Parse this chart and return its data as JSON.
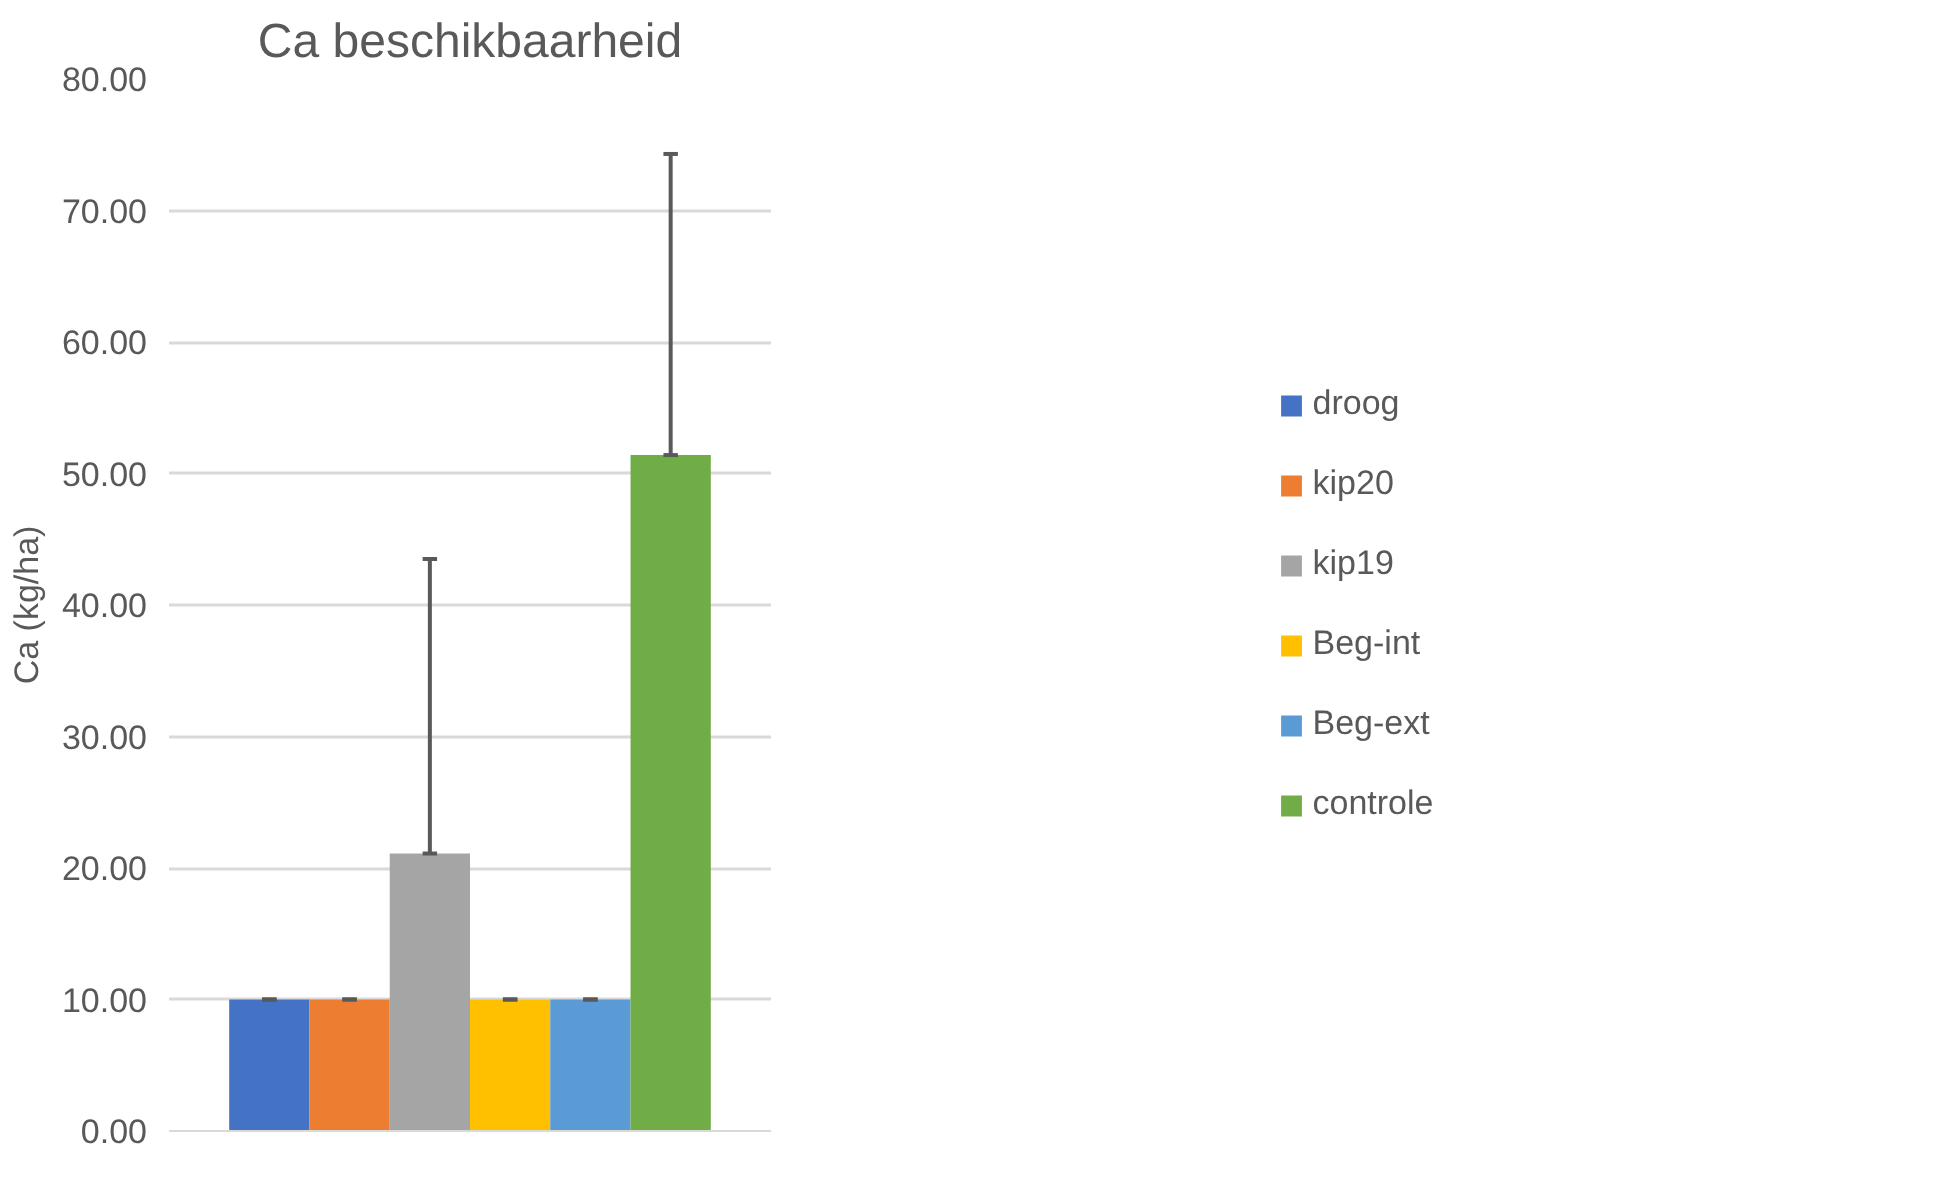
{
  "chart_data": {
    "type": "bar",
    "title": "Ca beschikbaarheid",
    "ylabel": "Ca (kg/ha)",
    "categories": [
      null
    ],
    "series": [
      {
        "name": "droog",
        "color": "#4472c4",
        "values": [
          10.0
        ],
        "errors": [
          [
            10.0,
            10.0
          ]
        ]
      },
      {
        "name": "kip20",
        "color": "#ed7d31",
        "values": [
          10.0
        ],
        "errors": [
          [
            10.0,
            10.0
          ]
        ]
      },
      {
        "name": "kip19",
        "color": "#a5a5a5",
        "values": [
          21.1
        ],
        "errors": [
          [
            21.1,
            43.5
          ]
        ]
      },
      {
        "name": "Beg-int",
        "color": "#ffc000",
        "values": [
          10.0
        ],
        "errors": [
          [
            10.0,
            10.0
          ]
        ]
      },
      {
        "name": "Beg-ext",
        "color": "#5b9bd5",
        "values": [
          10.0
        ],
        "errors": [
          [
            10.0,
            10.0
          ]
        ]
      },
      {
        "name": "controle",
        "color": "#70ad47",
        "values": [
          51.4
        ],
        "errors": [
          [
            51.4,
            74.3
          ]
        ]
      }
    ],
    "ylim": [
      0,
      80
    ],
    "yticks": [
      {
        "value": 0,
        "label": "0.00"
      },
      {
        "value": 10,
        "label": "10.00"
      },
      {
        "value": 20,
        "label": "20.00"
      },
      {
        "value": 30,
        "label": "30.00"
      },
      {
        "value": 40,
        "label": "40.00"
      },
      {
        "value": 50,
        "label": "50.00"
      },
      {
        "value": 60,
        "label": "60.00"
      },
      {
        "value": 70,
        "label": "70.00"
      },
      {
        "value": 80,
        "label": "80.00"
      }
    ],
    "grid": "y",
    "legend": "right"
  }
}
